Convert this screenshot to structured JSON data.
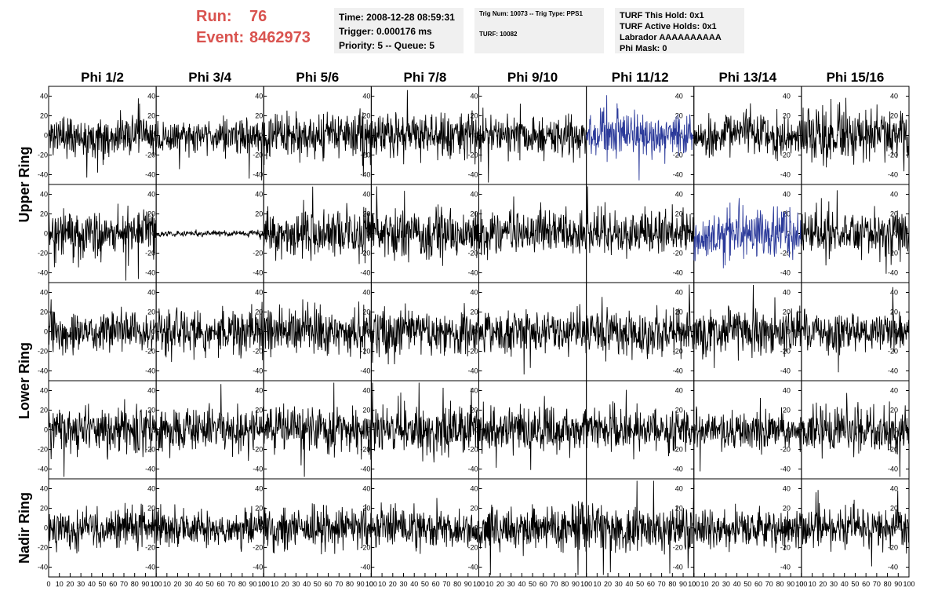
{
  "header": {
    "run_label": "Run:",
    "run_value": "76",
    "event_label": "Event:",
    "event_value": "8462973",
    "time_line": "Time: 2008-12-28 08:59:31",
    "trigger_line": "Trigger: 0.000176 ms",
    "priority_line": "Priority: 5 -- Queue: 5",
    "trig_num_line": "Trig Num: 10073 -- Trig Type: PPS1",
    "turf_line": "TURF: 10082",
    "turf_this_hold": "TURF This Hold: 0x1",
    "turf_active_holds": "TURF Active Holds: 0x1",
    "labrador": "Labrador AAAAAAAAAA",
    "phi_mask": "Phi Mask: 0"
  },
  "colors": {
    "header_red": "#d9534f",
    "trace_default": "#000000",
    "trace_highlight": "#2b3a9a",
    "panel_border": "#000000"
  },
  "chart_data": {
    "type": "line",
    "columns": [
      "Phi 1/2",
      "Phi 3/4",
      "Phi 5/6",
      "Phi 7/8",
      "Phi 9/10",
      "Phi 11/12",
      "Phi 13/14",
      "Phi 15/16"
    ],
    "rows": [
      "Upper Ring",
      "Upper Ring",
      "Lower Ring",
      "Lower Ring",
      "Nadir Ring"
    ],
    "row_groups": [
      {
        "label": "Upper Ring",
        "rows": [
          0,
          1
        ]
      },
      {
        "label": "Lower Ring",
        "rows": [
          2,
          3
        ]
      },
      {
        "label": "Nadir Ring",
        "rows": [
          4
        ]
      }
    ],
    "xlim": [
      0,
      100
    ],
    "ylim": [
      -50,
      50
    ],
    "y_ticks": [
      -40,
      -20,
      0,
      20,
      40
    ],
    "x_ticks": [
      0,
      10,
      20,
      30,
      40,
      50,
      60,
      70,
      80,
      90,
      100
    ],
    "x_tick_labels": [
      "0",
      "10",
      "20",
      "30",
      "40",
      "50",
      "60",
      "70",
      "80",
      "90",
      "100"
    ],
    "samples_per_trace": 260,
    "panels": [
      [
        {
          "std": 10,
          "seed": 11,
          "color": "#000000"
        },
        {
          "std": 9,
          "seed": 12,
          "color": "#000000"
        },
        {
          "std": 11,
          "seed": 13,
          "color": "#000000"
        },
        {
          "std": 11,
          "seed": 14,
          "color": "#000000"
        },
        {
          "std": 10,
          "seed": 15,
          "color": "#000000"
        },
        {
          "std": 11,
          "seed": 16,
          "color": "#2b3a9a"
        },
        {
          "std": 11,
          "seed": 17,
          "color": "#000000"
        },
        {
          "std": 14,
          "seed": 18,
          "color": "#000000"
        }
      ],
      [
        {
          "std": 13,
          "seed": 21,
          "color": "#000000"
        },
        {
          "std": 1.5,
          "seed": 22,
          "color": "#000000"
        },
        {
          "std": 12,
          "seed": 23,
          "color": "#000000"
        },
        {
          "std": 12,
          "seed": 24,
          "color": "#000000"
        },
        {
          "std": 11,
          "seed": 25,
          "color": "#000000"
        },
        {
          "std": 11,
          "seed": 26,
          "color": "#000000"
        },
        {
          "std": 13,
          "seed": 27,
          "color": "#2b3a9a"
        },
        {
          "std": 12,
          "seed": 28,
          "color": "#000000"
        }
      ],
      [
        {
          "std": 10,
          "seed": 31,
          "color": "#000000"
        },
        {
          "std": 11,
          "seed": 32,
          "color": "#000000"
        },
        {
          "std": 12,
          "seed": 33,
          "color": "#000000"
        },
        {
          "std": 12,
          "seed": 34,
          "color": "#000000"
        },
        {
          "std": 11,
          "seed": 35,
          "color": "#000000"
        },
        {
          "std": 11,
          "seed": 36,
          "color": "#000000"
        },
        {
          "std": 12,
          "seed": 37,
          "color": "#000000"
        },
        {
          "std": 10,
          "seed": 38,
          "color": "#000000"
        }
      ],
      [
        {
          "std": 12,
          "seed": 41,
          "color": "#000000"
        },
        {
          "std": 11,
          "seed": 42,
          "color": "#000000"
        },
        {
          "std": 11,
          "seed": 43,
          "color": "#000000"
        },
        {
          "std": 13,
          "seed": 44,
          "color": "#000000"
        },
        {
          "std": 11,
          "seed": 45,
          "color": "#000000"
        },
        {
          "std": 11,
          "seed": 46,
          "color": "#000000"
        },
        {
          "std": 9,
          "seed": 47,
          "color": "#000000"
        },
        {
          "std": 12,
          "seed": 48,
          "color": "#000000"
        }
      ],
      [
        {
          "std": 10,
          "seed": 51,
          "color": "#000000"
        },
        {
          "std": 9,
          "seed": 52,
          "color": "#000000"
        },
        {
          "std": 10,
          "seed": 53,
          "color": "#000000"
        },
        {
          "std": 10,
          "seed": 54,
          "color": "#000000"
        },
        {
          "std": 11,
          "seed": 55,
          "color": "#000000"
        },
        {
          "std": 11,
          "seed": 56,
          "color": "#000000"
        },
        {
          "std": 10,
          "seed": 57,
          "color": "#000000"
        },
        {
          "std": 10,
          "seed": 58,
          "color": "#000000"
        }
      ]
    ]
  }
}
